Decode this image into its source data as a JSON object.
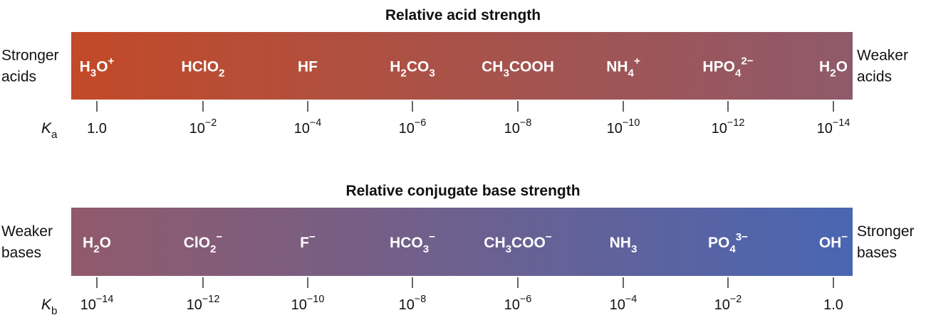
{
  "acid": {
    "title": "Relative acid strength",
    "left": [
      "Stronger",
      "acids"
    ],
    "right": [
      "Weaker",
      "acids"
    ],
    "constant": [
      "K",
      {
        "sub": "a"
      }
    ],
    "species": [
      [
        "H",
        {
          "sub": "3"
        },
        "O",
        {
          "sup": "+"
        }
      ],
      [
        "HClO",
        {
          "sub": "2"
        }
      ],
      [
        "HF"
      ],
      [
        "H",
        {
          "sub": "2"
        },
        "CO",
        {
          "sub": "3"
        }
      ],
      [
        "CH",
        {
          "sub": "3"
        },
        "COOH"
      ],
      [
        "NH",
        {
          "sub": "4"
        },
        {
          "sup": "+"
        }
      ],
      [
        "HPO",
        {
          "sub": "4"
        },
        {
          "sup": "2−"
        }
      ],
      [
        "H",
        {
          "sub": "2"
        },
        "O"
      ]
    ],
    "ticks": [
      [
        "1.0"
      ],
      [
        "10",
        {
          "sup": "−2"
        }
      ],
      [
        "10",
        {
          "sup": "−4"
        }
      ],
      [
        "10",
        {
          "sup": "−6"
        }
      ],
      [
        "10",
        {
          "sup": "−8"
        }
      ],
      [
        "10",
        {
          "sup": "−10"
        }
      ],
      [
        "10",
        {
          "sup": "−12"
        }
      ],
      [
        "10",
        {
          "sup": "−14"
        }
      ]
    ]
  },
  "base": {
    "title": "Relative conjugate base strength",
    "left": [
      "Weaker",
      "bases"
    ],
    "right": [
      "Stronger",
      "bases"
    ],
    "constant": [
      "K",
      {
        "sub": "b"
      }
    ],
    "species": [
      [
        "H",
        {
          "sub": "2"
        },
        "O"
      ],
      [
        "ClO",
        {
          "sub": "2"
        },
        {
          "sup": "−"
        }
      ],
      [
        "F",
        {
          "sup": "−"
        }
      ],
      [
        "HCO",
        {
          "sub": "3"
        },
        {
          "sup": "−"
        }
      ],
      [
        "CH",
        {
          "sub": "3"
        },
        "COO",
        {
          "sup": "−"
        }
      ],
      [
        "NH",
        {
          "sub": "3"
        }
      ],
      [
        "PO",
        {
          "sub": "4"
        },
        {
          "sup": "3−"
        }
      ],
      [
        "OH",
        {
          "sup": "−"
        }
      ]
    ],
    "ticks": [
      [
        "10",
        {
          "sup": "−14"
        }
      ],
      [
        "10",
        {
          "sup": "−12"
        }
      ],
      [
        "10",
        {
          "sup": "−10"
        }
      ],
      [
        "10",
        {
          "sup": "−8"
        }
      ],
      [
        "10",
        {
          "sup": "−6"
        }
      ],
      [
        "10",
        {
          "sup": "−4"
        }
      ],
      [
        "10",
        {
          "sup": "−2"
        }
      ],
      [
        "1.0"
      ]
    ]
  }
}
